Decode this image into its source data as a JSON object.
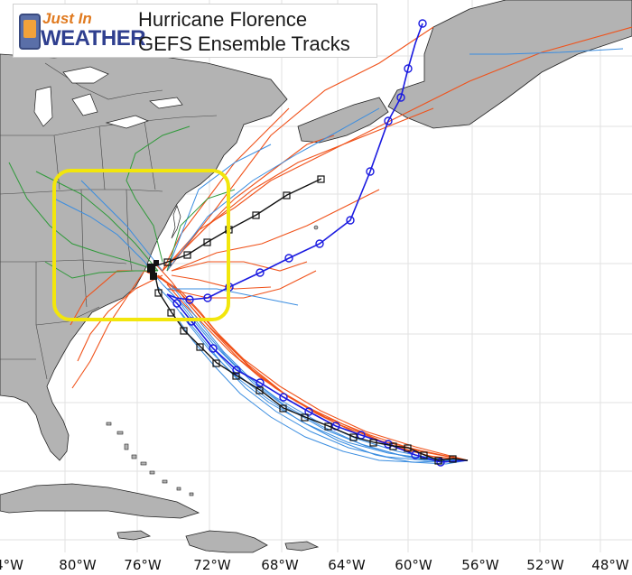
{
  "header": {
    "logo_top": "Just In",
    "logo_bottom": "WEATHER",
    "title_line1": "Hurricane Florence",
    "title_line2": "GEFS Ensemble Tracks"
  },
  "longitude_labels": [
    "4°W",
    "80°W",
    "76°W",
    "72°W",
    "68°W",
    "64°W",
    "60°W",
    "56°W",
    "52°W",
    "48°W"
  ],
  "colors": {
    "land": "#b3b3b3",
    "ocean": "#ffffff",
    "gridline": "#e2e2e2",
    "highlight_box": "#f2e60c",
    "track_orange": "#f0521a",
    "track_lightblue": "#3a8de0",
    "track_green": "#2f9a3a",
    "track_black": "#111111",
    "track_blue": "#1a1ae0"
  },
  "icons": {
    "black_track_marker": "square-marker",
    "blue_track_marker": "circle-marker"
  }
}
